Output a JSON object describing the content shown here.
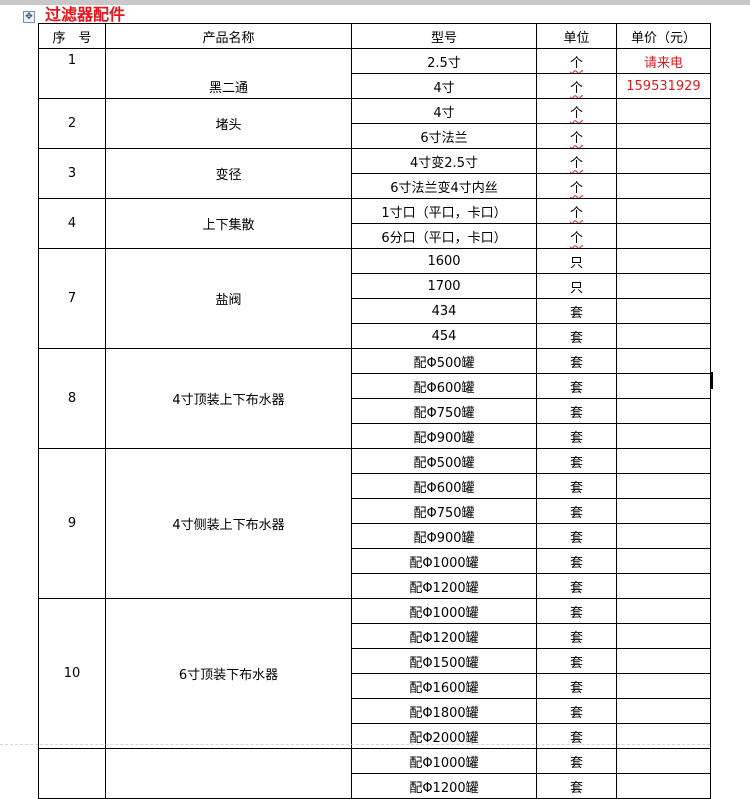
{
  "title": "过滤器配件",
  "headers": [
    "序　号",
    "产品名称",
    "型号",
    "单位",
    "单价（元）"
  ],
  "price_note": [
    "请来电",
    "159531929"
  ],
  "colors": {
    "title": "#e8141c",
    "price": "#d81e1e"
  },
  "groups": [
    {
      "no": "1",
      "name": "黑二通",
      "rows": [
        [
          "2.5寸",
          "个"
        ],
        [
          "4寸",
          "个"
        ]
      ]
    },
    {
      "no": "2",
      "name": "堵头",
      "rows": [
        [
          "4寸",
          "个"
        ],
        [
          "6寸法兰",
          "个"
        ]
      ]
    },
    {
      "no": "3",
      "name": "变径",
      "rows": [
        [
          "4寸变2.5寸",
          "个"
        ],
        [
          "6寸法兰变4寸内丝",
          "个"
        ]
      ]
    },
    {
      "no": "4",
      "name": "上下集散",
      "rows": [
        [
          "1寸口（平口，卡口）",
          "个"
        ],
        [
          "6分口（平口，卡口）",
          "个"
        ]
      ]
    },
    {
      "no": "7",
      "name": "盐阀",
      "rows": [
        [
          "1600",
          "只"
        ],
        [
          "1700",
          "只"
        ],
        [
          "434",
          "套"
        ],
        [
          "454",
          "套"
        ]
      ]
    },
    {
      "no": "8",
      "name": "4寸顶装上下布水器",
      "rows": [
        [
          "配Φ500罐",
          "套"
        ],
        [
          "配Φ600罐",
          "套"
        ],
        [
          "配Φ750罐",
          "套"
        ],
        [
          "配Φ900罐",
          "套"
        ]
      ]
    },
    {
      "no": "9",
      "name": "4寸侧装上下布水器",
      "rows": [
        [
          "配Φ500罐",
          "套"
        ],
        [
          "配Φ600罐",
          "套"
        ],
        [
          "配Φ750罐",
          "套"
        ],
        [
          "配Φ900罐",
          "套"
        ],
        [
          "配Φ1000罐",
          "套"
        ],
        [
          "配Φ1200罐",
          "套"
        ]
      ]
    },
    {
      "no": "10",
      "name": "6寸顶装下布水器",
      "rows": [
        [
          "配Φ1000罐",
          "套"
        ],
        [
          "配Φ1200罐",
          "套"
        ],
        [
          "配Φ1500罐",
          "套"
        ],
        [
          "配Φ1600罐",
          "套"
        ],
        [
          "配Φ1800罐",
          "套"
        ],
        [
          "配Φ2000罐",
          "套"
        ]
      ]
    },
    {
      "no": "",
      "name": "",
      "rows": [
        [
          "配Φ1000罐",
          "套"
        ],
        [
          "配Φ1200罐",
          "套"
        ]
      ]
    }
  ]
}
